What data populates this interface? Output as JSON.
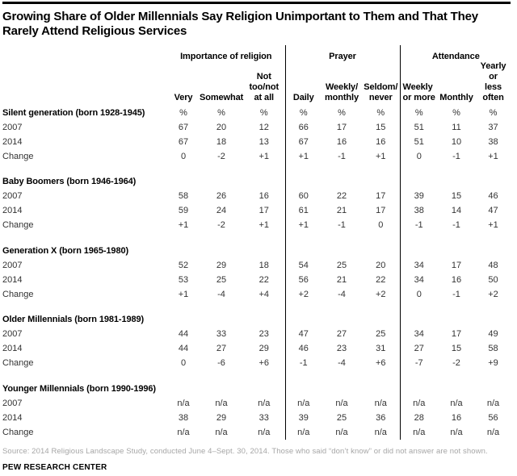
{
  "title_display": "Growing Share of Older Millennials Say Religion Unimportant to Them and That They\nRarely Attend Religious Services",
  "chart_data": {
    "type": "table",
    "title": "Growing Share of Older Millennials Say Religion Unimportant to Them and That They Rarely Attend Religious Services",
    "unit": "%",
    "column_groups": [
      {
        "label": "Importance of religion",
        "columns": [
          {
            "name": "Very",
            "lines": [
              "Very"
            ]
          },
          {
            "name": "Somewhat",
            "lines": [
              "Somewhat"
            ]
          },
          {
            "name": "Not too/not at all",
            "lines": [
              "Not",
              "too/not",
              "at all"
            ]
          }
        ]
      },
      {
        "label": "Prayer",
        "columns": [
          {
            "name": "Daily",
            "lines": [
              "Daily"
            ]
          },
          {
            "name": "Weekly/monthly",
            "lines": [
              "Weekly/",
              "monthly"
            ]
          },
          {
            "name": "Seldom/never",
            "lines": [
              "Seldom/",
              "never"
            ]
          }
        ]
      },
      {
        "label": "Attendance",
        "columns": [
          {
            "name": "Weekly or more",
            "lines": [
              "Weekly",
              "or more"
            ],
            "align": "left"
          },
          {
            "name": "Monthly",
            "lines": [
              "Monthly"
            ]
          },
          {
            "name": "Yearly or less often",
            "lines": [
              "Yearly or",
              "less",
              "often"
            ]
          }
        ]
      }
    ],
    "row_groups": [
      {
        "label": "Silent generation (born 1928-1945)",
        "show_unit_row": true,
        "rows": [
          {
            "label": "2007",
            "values": [
              "67",
              "20",
              "12",
              "66",
              "17",
              "15",
              "51",
              "11",
              "37"
            ]
          },
          {
            "label": "2014",
            "values": [
              "67",
              "18",
              "13",
              "67",
              "16",
              "16",
              "51",
              "10",
              "38"
            ]
          },
          {
            "label": "Change",
            "values": [
              "0",
              "-2",
              "+1",
              "+1",
              "-1",
              "+1",
              "0",
              "-1",
              "+1"
            ]
          }
        ]
      },
      {
        "label": "Baby Boomers (born 1946-1964)",
        "show_unit_row": false,
        "rows": [
          {
            "label": "2007",
            "values": [
              "58",
              "26",
              "16",
              "60",
              "22",
              "17",
              "39",
              "15",
              "46"
            ]
          },
          {
            "label": "2014",
            "values": [
              "59",
              "24",
              "17",
              "61",
              "21",
              "17",
              "38",
              "14",
              "47"
            ]
          },
          {
            "label": "Change",
            "values": [
              "+1",
              "-2",
              "+1",
              "+1",
              "-1",
              "0",
              "-1",
              "-1",
              "+1"
            ]
          }
        ]
      },
      {
        "label": "Generation X (born 1965-1980)",
        "show_unit_row": false,
        "rows": [
          {
            "label": "2007",
            "values": [
              "52",
              "29",
              "18",
              "54",
              "25",
              "20",
              "34",
              "17",
              "48"
            ]
          },
          {
            "label": "2014",
            "values": [
              "53",
              "25",
              "22",
              "56",
              "21",
              "22",
              "34",
              "16",
              "50"
            ]
          },
          {
            "label": "Change",
            "values": [
              "+1",
              "-4",
              "+4",
              "+2",
              "-4",
              "+2",
              "0",
              "-1",
              "+2"
            ]
          }
        ]
      },
      {
        "label": "Older Millennials (born 1981-1989)",
        "show_unit_row": false,
        "rows": [
          {
            "label": "2007",
            "values": [
              "44",
              "33",
              "23",
              "47",
              "27",
              "25",
              "34",
              "17",
              "49"
            ]
          },
          {
            "label": "2014",
            "values": [
              "44",
              "27",
              "29",
              "46",
              "23",
              "31",
              "27",
              "15",
              "58"
            ]
          },
          {
            "label": "Change",
            "values": [
              "0",
              "-6",
              "+6",
              "-1",
              "-4",
              "+6",
              "-7",
              "-2",
              "+9"
            ]
          }
        ]
      },
      {
        "label": "Younger Millennials (born 1990-1996)",
        "show_unit_row": false,
        "rows": [
          {
            "label": "2007",
            "values": [
              "n/a",
              "n/a",
              "n/a",
              "n/a",
              "n/a",
              "n/a",
              "n/a",
              "n/a",
              "n/a"
            ]
          },
          {
            "label": "2014",
            "values": [
              "38",
              "29",
              "33",
              "39",
              "25",
              "36",
              "28",
              "16",
              "56"
            ]
          },
          {
            "label": "Change",
            "values": [
              "n/a",
              "n/a",
              "n/a",
              "n/a",
              "n/a",
              "n/a",
              "n/a",
              "n/a",
              "n/a"
            ]
          }
        ]
      }
    ]
  },
  "footer": {
    "source": "Source: 2014 Religious Landscape Study, conducted June 4–Sept. 30, 2014. Those who said “don’t know” or did not answer are not shown.",
    "brand": "PEW RESEARCH CENTER"
  },
  "colors": {
    "accent_bar": "#000000",
    "divider": "#000000",
    "data_text": "#333333",
    "source_text": "#a6a6a6",
    "bottom_rule": "#7a7a7a"
  }
}
